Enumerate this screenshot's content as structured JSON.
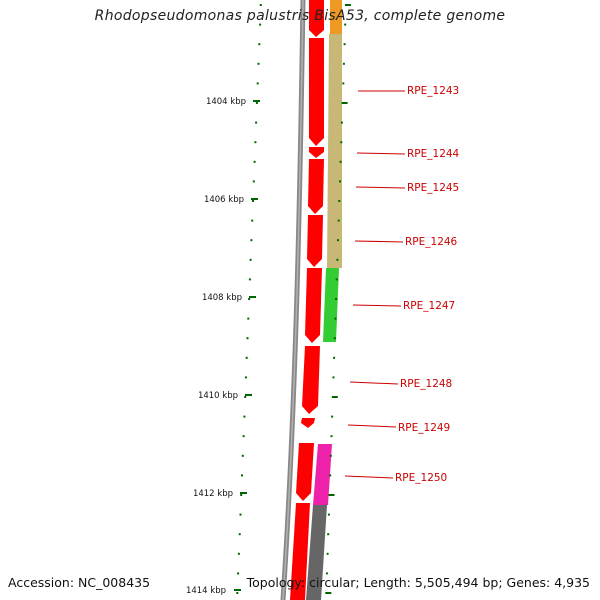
{
  "title": "Rhodopseudomonas palustris BisA53, complete genome",
  "footer": {
    "accession": "Accession: NC_008435",
    "topology": "Topology: circular; Length: 5,505,494 bp; Genes: 4,935"
  },
  "scale_labels": [
    "1404 kbp",
    "1406 kbp",
    "1408 kbp",
    "1410 kbp",
    "1412 kbp",
    "1414 kbp"
  ],
  "gene_labels": [
    "RPE_1243",
    "RPE_1244",
    "RPE_1245",
    "RPE_1246",
    "RPE_1247",
    "RPE_1248",
    "RPE_1249",
    "RPE_1250"
  ],
  "colors": {
    "backbone": "#8a8a8a",
    "gene": "#ff0000",
    "cog_tan": "#c8b878",
    "cog_green": "#33cc33",
    "cog_magenta": "#ee22aa",
    "cog_gray": "#666666",
    "cog_orange": "#ee9922",
    "tick": "#006600",
    "label": "#cc0000"
  }
}
